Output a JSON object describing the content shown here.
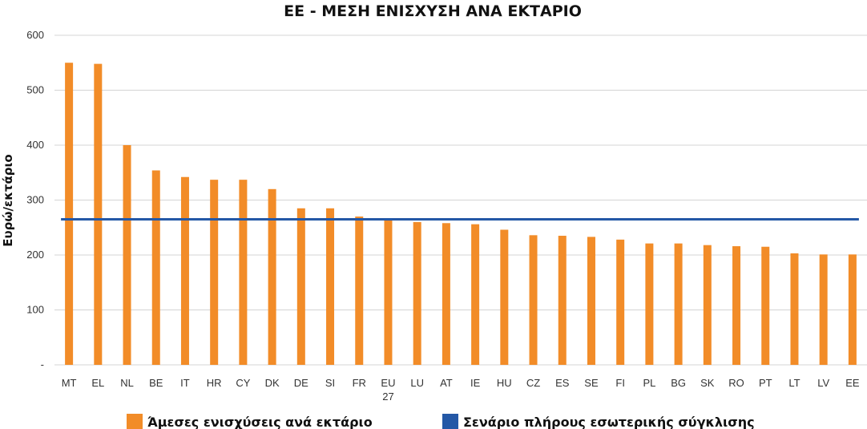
{
  "chart_data": {
    "type": "bar",
    "title": "ΕΕ - ΜΕΣΗ ΕΝΙΣΧΥΣΗ ΑΝΑ ΕΚΤΑΡΙΟ",
    "xlabel": "",
    "ylabel": "Ευρώ/εκτάριο",
    "ylim": [
      0,
      600
    ],
    "yticks": [
      0,
      100,
      200,
      300,
      400,
      500,
      600
    ],
    "ytick_labels": [
      "-",
      "100",
      "200",
      "300",
      "400",
      "500",
      "600"
    ],
    "grid": true,
    "legend_position": "bottom",
    "categories": [
      "MT",
      "EL",
      "NL",
      "BE",
      "IT",
      "HR",
      "CY",
      "DK",
      "DE",
      "SI",
      "FR",
      "EU\n27",
      "LU",
      "AT",
      "IE",
      "HU",
      "CZ",
      "ES",
      "SE",
      "FI",
      "PL",
      "BG",
      "SK",
      "RO",
      "PT",
      "LT",
      "LV",
      "EE"
    ],
    "series": [
      {
        "name": "Άμεσες ενισχύσεις ανά εκτάριο",
        "type": "bar",
        "color": "#f28c28",
        "values": [
          550,
          548,
          400,
          354,
          342,
          337,
          337,
          320,
          285,
          285,
          270,
          265,
          260,
          258,
          256,
          246,
          236,
          235,
          233,
          228,
          221,
          221,
          218,
          216,
          215,
          203,
          201,
          201
        ]
      },
      {
        "name": "Σενάριο πλήρους εσωτερικής σύγκλισης",
        "type": "line",
        "color": "#2458a6",
        "value": 265
      }
    ]
  }
}
